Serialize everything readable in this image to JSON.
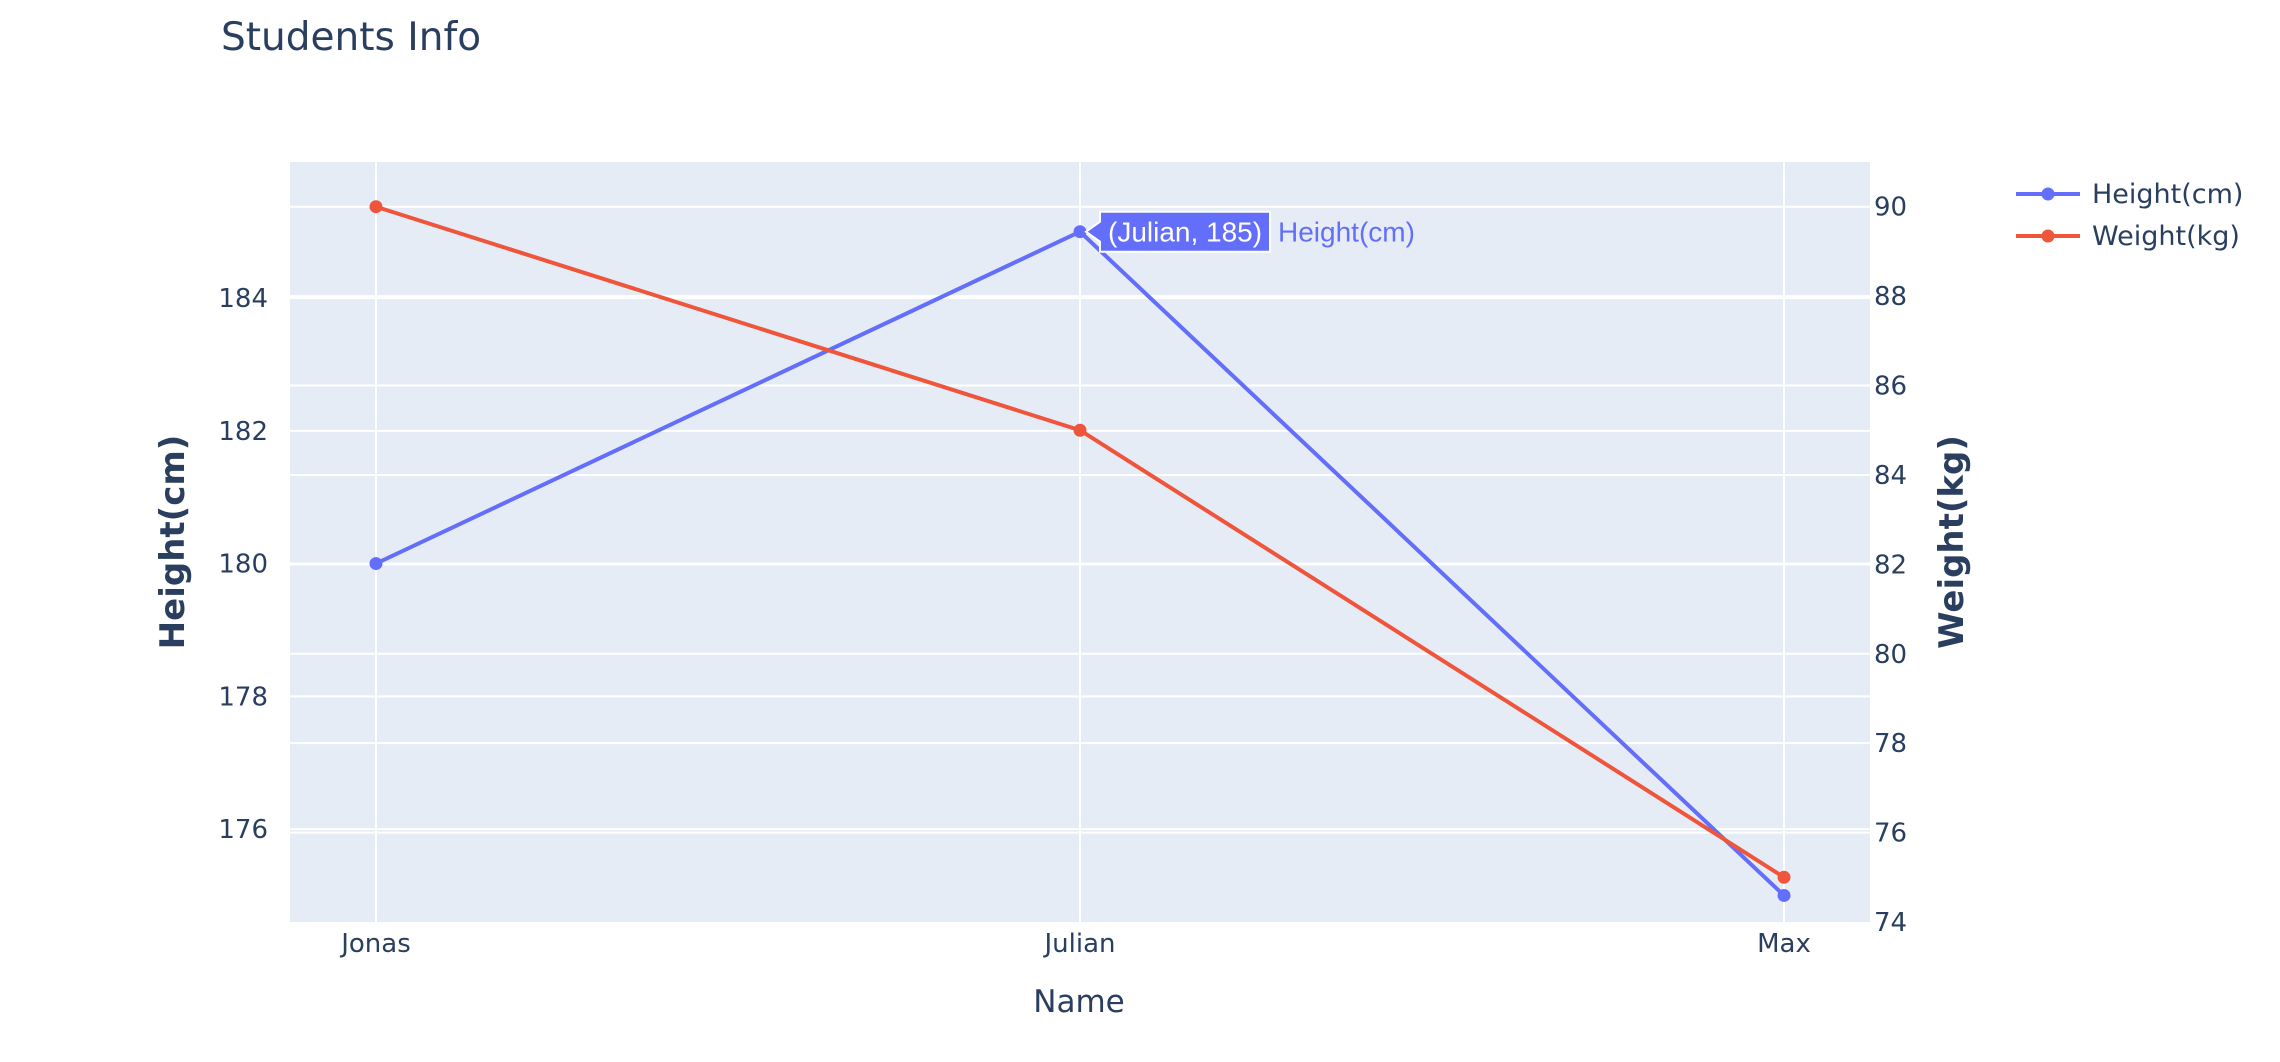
{
  "chart_data": {
    "type": "line",
    "title": "Students Info",
    "xlabel": "Name",
    "ylabel_left": "Height(cm)",
    "ylabel_right": "Weight(kg)",
    "categories": [
      "Jonas",
      "Julian",
      "Max"
    ],
    "series": [
      {
        "name": "Height(cm)",
        "axis": "left",
        "values": [
          180,
          185,
          175
        ],
        "color": "#636efa"
      },
      {
        "name": "Weight(kg)",
        "axis": "right",
        "values": [
          90,
          85,
          75
        ],
        "color": "#ef553b"
      }
    ],
    "ylim_left": [
      174.6,
      186.05
    ],
    "ylim_right": [
      74,
      91
    ],
    "yticks_left": [
      176,
      178,
      180,
      182,
      184
    ],
    "yticks_right": [
      74,
      76,
      78,
      80,
      82,
      84,
      86,
      88,
      90
    ],
    "grid": true,
    "legend": "top-right",
    "plot_background": "#e5ecf6",
    "hover": {
      "category": "Julian",
      "series": "Height(cm)",
      "label": "(Julian, 185)",
      "series_label": "Height(cm)"
    }
  }
}
